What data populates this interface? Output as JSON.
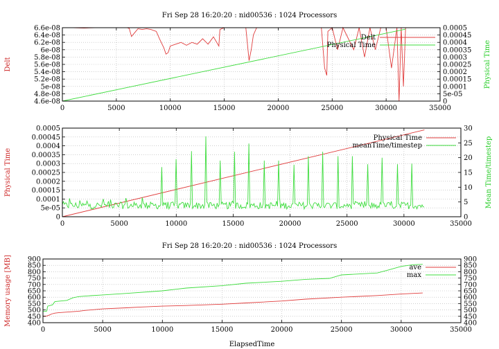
{
  "chart_data": [
    {
      "type": "line",
      "title": "Fri Sep 28 16:20:20 : nid00536 : 1024 Processors",
      "ylabel": "Delt",
      "y2label": "Physical Time",
      "xlim": [
        0,
        35000
      ],
      "ylim": [
        4.6e-08,
        6.6e-08
      ],
      "y2lim": [
        0,
        0.0005
      ],
      "xticks": [
        "0",
        "5000",
        "10000",
        "15000",
        "20000",
        "25000",
        "30000",
        "35000"
      ],
      "yticks": [
        "4.6e-08",
        "4.8e-08",
        "5e-08",
        "5.2e-08",
        "5.4e-08",
        "5.6e-08",
        "5.8e-08",
        "6e-08",
        "6.2e-08",
        "6.4e-08",
        "6.6e-08"
      ],
      "y2ticks": [
        "0",
        "5e-05",
        "0.0001",
        "0.00015",
        "0.0002",
        "0.00025",
        "0.0003",
        "0.00035",
        "0.0004",
        "0.00045",
        "0.0005"
      ],
      "grid": true,
      "legend_position": "top-right",
      "series": [
        {
          "name": "Delt",
          "axis": "y",
          "color": "#e03c3c",
          "x": [
            0,
            1000,
            2000,
            3000,
            4000,
            5000,
            6000,
            6200,
            6400,
            6800,
            7000,
            7400,
            7800,
            8200,
            8700,
            9000,
            9400,
            9600,
            9800,
            10000,
            10500,
            11000,
            11500,
            12000,
            12500,
            13000,
            13500,
            14000,
            14500,
            14600,
            15000,
            15500,
            16000,
            17000,
            17300,
            17500,
            17700,
            18000,
            19000,
            20000,
            21000,
            22000,
            23000,
            24000,
            24300,
            24500,
            24600,
            25000,
            25500,
            26000,
            27000,
            27500,
            28000,
            28500,
            29000,
            29500,
            30000,
            30500,
            31000,
            31200,
            31400,
            31600,
            31800
          ],
          "y": [
            6.6e-08,
            6.6e-08,
            6.59e-08,
            6.6e-08,
            6.6e-08,
            6.6e-08,
            6.6e-08,
            6.58e-08,
            6.36e-08,
            6.5e-08,
            6.57e-08,
            6.55e-08,
            6.57e-08,
            6.55e-08,
            6.5e-08,
            6.3e-08,
            6.05e-08,
            5.88e-08,
            5.92e-08,
            6.1e-08,
            6.15e-08,
            6.2e-08,
            6.12e-08,
            6.2e-08,
            6.15e-08,
            6.3e-08,
            6.15e-08,
            6.35e-08,
            6.1e-08,
            6.55e-08,
            6.6e-08,
            6.6e-08,
            6.6e-08,
            6.6e-08,
            5.7e-08,
            6e-08,
            6.4e-08,
            6.6e-08,
            6.6e-08,
            6.6e-08,
            6.6e-08,
            6.6e-08,
            6.6e-08,
            6.6e-08,
            5.5e-08,
            5.3e-08,
            6.5e-08,
            6.6e-08,
            6e-08,
            6.6e-08,
            6e-08,
            6.6e-08,
            5.8e-08,
            6.6e-08,
            6e-08,
            6.6e-08,
            6.6e-08,
            5.5e-08,
            6.6e-08,
            4.6e-08,
            6.6e-08,
            5e-08,
            6.6e-08
          ]
        },
        {
          "name": "Physical Time",
          "axis": "y2",
          "color": "#3cdc3c",
          "x": [
            0,
            31800
          ],
          "y": [
            0,
            0.00049
          ]
        }
      ]
    },
    {
      "type": "line",
      "ylabel": "Physical Time",
      "y2label": "Mean Time/timestep",
      "xlim": [
        0,
        35000
      ],
      "ylim": [
        0,
        0.0005
      ],
      "y2lim": [
        0,
        30
      ],
      "xticks": [
        "0",
        "5000",
        "10000",
        "15000",
        "20000",
        "25000",
        "30000",
        "35000"
      ],
      "yticks": [
        "0",
        "5e-05",
        "0.0001",
        "0.00015",
        "0.0002",
        "0.00025",
        "0.0003",
        "0.00035",
        "0.0004",
        "0.00045",
        "0.0005"
      ],
      "y2ticks": [
        "0",
        "5",
        "10",
        "15",
        "20",
        "25",
        "30"
      ],
      "grid": true,
      "legend_position": "top-right",
      "series": [
        {
          "name": "Physical Time",
          "axis": "y",
          "color": "#e03c3c",
          "x": [
            0,
            31800
          ],
          "y": [
            0,
            0.00049
          ]
        },
        {
          "name": "meanTime/timestep",
          "axis": "y2",
          "color": "#3cdc3c",
          "baseline": 3.8,
          "noise": 1.2,
          "x_start": 0,
          "x_end": 31800,
          "spikes": [
            [
              600,
              6.2
            ],
            [
              1500,
              5.5
            ],
            [
              2200,
              5.3
            ],
            [
              3600,
              6.0
            ],
            [
              4200,
              5.8
            ],
            [
              5600,
              6.3
            ],
            [
              7000,
              6.5
            ],
            [
              8700,
              16.8
            ],
            [
              10000,
              19.5
            ],
            [
              11300,
              22.2
            ],
            [
              12600,
              27.2
            ],
            [
              13900,
              19.0
            ],
            [
              15100,
              22.0
            ],
            [
              16400,
              24.8
            ],
            [
              17700,
              19.0
            ],
            [
              19000,
              19.0
            ],
            [
              20300,
              17.6
            ],
            [
              21600,
              20.5
            ],
            [
              22900,
              22.0
            ],
            [
              24200,
              20.5
            ],
            [
              25500,
              20.5
            ],
            [
              26800,
              17.8
            ],
            [
              28100,
              20.0
            ],
            [
              29400,
              17.8
            ],
            [
              30700,
              18.0
            ]
          ]
        }
      ]
    },
    {
      "type": "line",
      "title": "Fri Sep 28 16:20:20 : nid00536 : 1024 Processors",
      "xlabel": "ElapsedTime",
      "ylabel": "Memory usage [MB]",
      "xlim": [
        0,
        35000
      ],
      "ylim": [
        400,
        900
      ],
      "y2lim": [
        400,
        900
      ],
      "xticks": [
        "0",
        "5000",
        "10000",
        "15000",
        "20000",
        "25000",
        "30000",
        "35000"
      ],
      "yticks": [
        "400",
        "450",
        "500",
        "550",
        "600",
        "650",
        "700",
        "750",
        "800",
        "850",
        "900"
      ],
      "y2ticks": [
        "400",
        "450",
        "500",
        "550",
        "600",
        "650",
        "700",
        "750",
        "800",
        "850",
        "900"
      ],
      "grid": true,
      "legend_position": "top-right",
      "series": [
        {
          "name": "ave",
          "color": "#e03c3c",
          "x": [
            0,
            300,
            600,
            700,
            1000,
            1300,
            2000,
            3000,
            3500,
            5000,
            7000,
            8000,
            10000,
            12000,
            15000,
            17000,
            20000,
            22000,
            25000,
            28000,
            30000,
            31800
          ],
          "y": [
            452,
            452,
            462,
            468,
            475,
            478,
            483,
            490,
            496,
            508,
            517,
            522,
            530,
            535,
            545,
            555,
            570,
            585,
            600,
            613,
            625,
            633
          ]
        },
        {
          "name": "max",
          "color": "#3cdc3c",
          "x": [
            0,
            300,
            400,
            800,
            1000,
            2000,
            2500,
            3000,
            4000,
            5000,
            7000,
            10000,
            12000,
            15000,
            17000,
            20000,
            22000,
            24000,
            25000,
            28000,
            29000,
            30000,
            31000,
            31800
          ],
          "y": [
            490,
            490,
            530,
            540,
            565,
            575,
            595,
            605,
            612,
            618,
            630,
            650,
            672,
            690,
            710,
            725,
            740,
            748,
            775,
            790,
            815,
            842,
            855,
            858
          ]
        }
      ]
    }
  ]
}
